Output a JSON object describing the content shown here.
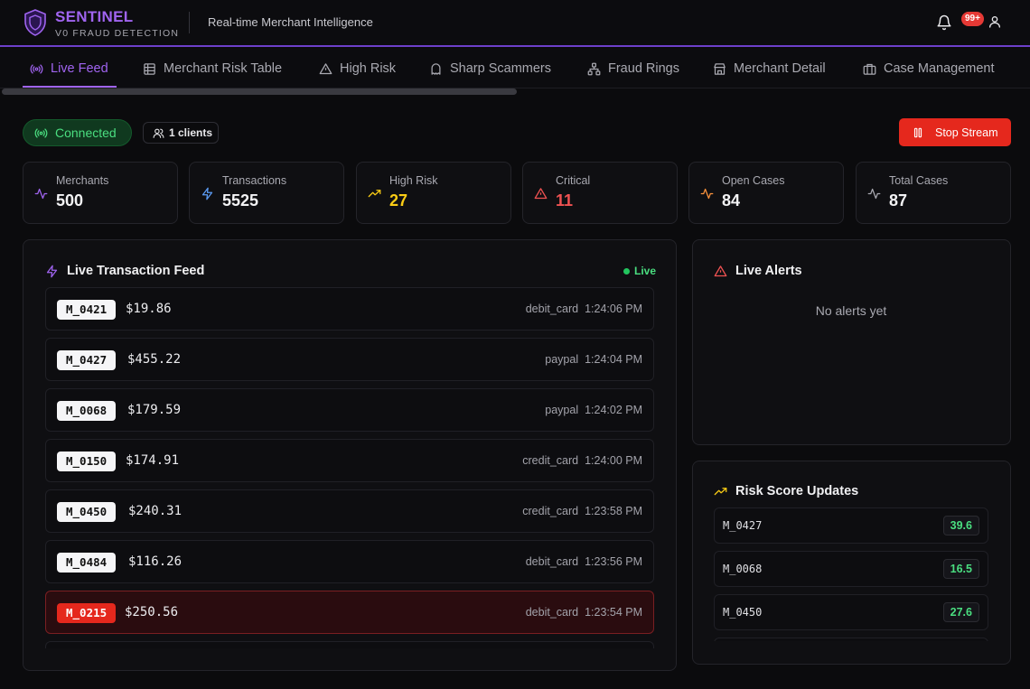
{
  "header": {
    "brand": "SENTINEL",
    "subtitle": "V0 FRAUD DETECTION",
    "tagline": "Real-time Merchant Intelligence",
    "notifications_badge": "99+",
    "accent_color": "#a064f0"
  },
  "tabs": [
    {
      "label": "Live Feed",
      "icon": "radio-icon",
      "active": true
    },
    {
      "label": "Merchant Risk Table",
      "icon": "table-icon",
      "active": false
    },
    {
      "label": "High Risk",
      "icon": "warning-icon",
      "active": false
    },
    {
      "label": "Sharp Scammers",
      "icon": "ghost-icon",
      "active": false
    },
    {
      "label": "Fraud Rings",
      "icon": "network-icon",
      "active": false
    },
    {
      "label": "Merchant Detail",
      "icon": "store-icon",
      "active": false
    },
    {
      "label": "Case Management",
      "icon": "briefcase-icon",
      "active": false
    }
  ],
  "status": {
    "connection": "Connected",
    "clients": "1 clients",
    "stop_label": "Stop Stream"
  },
  "stats": [
    {
      "label": "Merchants",
      "value": "500",
      "icon": "activity-icon",
      "color": "#f3f3f5"
    },
    {
      "label": "Transactions",
      "value": "5525",
      "icon": "zap-icon",
      "color": "#f3f3f5"
    },
    {
      "label": "High Risk",
      "value": "27",
      "icon": "trending-up-icon",
      "color": "#facc15"
    },
    {
      "label": "Critical",
      "value": "11",
      "icon": "alert-icon",
      "color": "#f05252"
    },
    {
      "label": "Open Cases",
      "value": "84",
      "icon": "activity-icon",
      "color": "#f3f3f5"
    },
    {
      "label": "Total Cases",
      "value": "87",
      "icon": "activity-icon",
      "color": "#f3f3f5"
    }
  ],
  "feed": {
    "title": "Live Transaction Feed",
    "live_label": "Live",
    "transactions": [
      {
        "merchant": "M_0421",
        "amount": "$19.86",
        "method": "debit_card",
        "time": "1:24:06 PM",
        "flagged": false
      },
      {
        "merchant": "M_0427",
        "amount": "$455.22",
        "method": "paypal",
        "time": "1:24:04 PM",
        "flagged": false
      },
      {
        "merchant": "M_0068",
        "amount": "$179.59",
        "method": "paypal",
        "time": "1:24:02 PM",
        "flagged": false
      },
      {
        "merchant": "M_0150",
        "amount": "$174.91",
        "method": "credit_card",
        "time": "1:24:00 PM",
        "flagged": false
      },
      {
        "merchant": "M_0450",
        "amount": "$240.31",
        "method": "credit_card",
        "time": "1:23:58 PM",
        "flagged": false
      },
      {
        "merchant": "M_0484",
        "amount": "$116.26",
        "method": "debit_card",
        "time": "1:23:56 PM",
        "flagged": false
      },
      {
        "merchant": "M_0215",
        "amount": "$250.56",
        "method": "debit_card",
        "time": "1:23:54 PM",
        "flagged": true
      }
    ]
  },
  "alerts": {
    "title": "Live Alerts",
    "empty_text": "No alerts yet"
  },
  "risk_updates": {
    "title": "Risk Score Updates",
    "items": [
      {
        "merchant": "M_0427",
        "score": "39.6"
      },
      {
        "merchant": "M_0068",
        "score": "16.5"
      },
      {
        "merchant": "M_0450",
        "score": "27.6"
      }
    ]
  }
}
